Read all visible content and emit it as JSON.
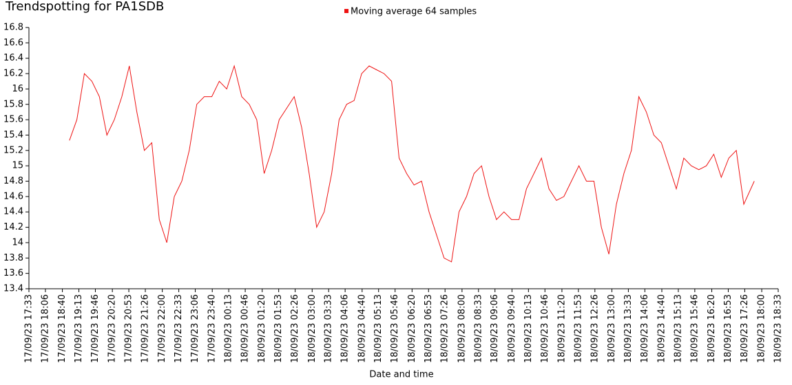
{
  "chart_data": {
    "type": "line",
    "title": "Trendspotting for PA1SDB",
    "xlabel": "Date and time",
    "series": [
      {
        "name": "Moving average 64 samples",
        "color": "#ee1111",
        "x": [
          "2023-09-17T18:54",
          "2023-09-17T19:09",
          "2023-09-17T19:24",
          "2023-09-17T19:39",
          "2023-09-17T19:54",
          "2023-09-17T20:09",
          "2023-09-17T20:24",
          "2023-09-17T20:39",
          "2023-09-17T20:54",
          "2023-09-17T21:09",
          "2023-09-17T21:24",
          "2023-09-17T21:39",
          "2023-09-17T21:54",
          "2023-09-17T22:09",
          "2023-09-17T22:24",
          "2023-09-17T22:39",
          "2023-09-17T22:54",
          "2023-09-17T23:09",
          "2023-09-17T23:24",
          "2023-09-17T23:39",
          "2023-09-17T23:54",
          "2023-09-18T00:09",
          "2023-09-18T00:24",
          "2023-09-18T00:39",
          "2023-09-18T00:54",
          "2023-09-18T01:09",
          "2023-09-18T01:24",
          "2023-09-18T01:39",
          "2023-09-18T01:54",
          "2023-09-18T02:09",
          "2023-09-18T02:24",
          "2023-09-18T02:39",
          "2023-09-18T02:54",
          "2023-09-18T03:09",
          "2023-09-18T03:24",
          "2023-09-18T03:39",
          "2023-09-18T03:54",
          "2023-09-18T04:09",
          "2023-09-18T04:24",
          "2023-09-18T04:39",
          "2023-09-18T04:54",
          "2023-09-18T05:09",
          "2023-09-18T05:24",
          "2023-09-18T05:39",
          "2023-09-18T05:54",
          "2023-09-18T06:09",
          "2023-09-18T06:24",
          "2023-09-18T06:39",
          "2023-09-18T06:54",
          "2023-09-18T07:09",
          "2023-09-18T07:24",
          "2023-09-18T07:39",
          "2023-09-18T07:54",
          "2023-09-18T08:09",
          "2023-09-18T08:24",
          "2023-09-18T08:39",
          "2023-09-18T08:54",
          "2023-09-18T09:09",
          "2023-09-18T09:24",
          "2023-09-18T09:39",
          "2023-09-18T09:54",
          "2023-09-18T10:09",
          "2023-09-18T10:24",
          "2023-09-18T10:39",
          "2023-09-18T10:54",
          "2023-09-18T11:09",
          "2023-09-18T11:24",
          "2023-09-18T11:39",
          "2023-09-18T11:54",
          "2023-09-18T12:09",
          "2023-09-18T12:24",
          "2023-09-18T12:39",
          "2023-09-18T12:54",
          "2023-09-18T13:09",
          "2023-09-18T13:24",
          "2023-09-18T13:39",
          "2023-09-18T13:54",
          "2023-09-18T14:09",
          "2023-09-18T14:24",
          "2023-09-18T14:39",
          "2023-09-18T14:54",
          "2023-09-18T15:09",
          "2023-09-18T15:24",
          "2023-09-18T15:39",
          "2023-09-18T15:54",
          "2023-09-18T16:09",
          "2023-09-18T16:24",
          "2023-09-18T16:39",
          "2023-09-18T16:54",
          "2023-09-18T17:09",
          "2023-09-18T17:24",
          "2023-09-18T17:45"
        ],
        "values": [
          15.33,
          15.6,
          16.2,
          16.1,
          15.9,
          15.4,
          15.6,
          15.9,
          16.3,
          15.7,
          15.2,
          15.3,
          14.3,
          14.0,
          14.6,
          14.8,
          15.2,
          15.8,
          15.9,
          15.9,
          16.1,
          16.0,
          16.3,
          15.9,
          15.8,
          15.6,
          14.9,
          15.2,
          15.6,
          15.75,
          15.9,
          15.5,
          14.9,
          14.2,
          14.4,
          14.9,
          15.6,
          15.8,
          15.85,
          16.2,
          16.3,
          16.25,
          16.2,
          16.1,
          15.1,
          14.9,
          14.75,
          14.8,
          14.4,
          14.1,
          13.8,
          13.75,
          14.4,
          14.6,
          14.9,
          15.0,
          14.6,
          14.3,
          14.4,
          14.3,
          14.3,
          14.7,
          14.9,
          15.1,
          14.7,
          14.55,
          14.6,
          14.8,
          15.0,
          14.8,
          14.8,
          14.2,
          13.85,
          14.5,
          14.9,
          15.2,
          15.9,
          15.7,
          15.4,
          15.3,
          15.0,
          14.7,
          15.1,
          15.0,
          14.95,
          15.0,
          15.15,
          14.85,
          15.1,
          15.2,
          14.5,
          14.8
        ]
      }
    ],
    "xlim": [
      "2023-09-17T17:33",
      "2023-09-18T18:33"
    ],
    "xticks": [
      {
        "value": "2023-09-17T17:33",
        "label": "17/09/23 17:33"
      },
      {
        "value": "2023-09-17T18:06",
        "label": "17/09/23 18:06"
      },
      {
        "value": "2023-09-17T18:40",
        "label": "17/09/23 18:40"
      },
      {
        "value": "2023-09-17T19:13",
        "label": "17/09/23 19:13"
      },
      {
        "value": "2023-09-17T19:46",
        "label": "17/09/23 19:46"
      },
      {
        "value": "2023-09-17T20:20",
        "label": "17/09/23 20:20"
      },
      {
        "value": "2023-09-17T20:53",
        "label": "17/09/23 20:53"
      },
      {
        "value": "2023-09-17T21:26",
        "label": "17/09/23 21:26"
      },
      {
        "value": "2023-09-17T22:00",
        "label": "17/09/23 22:00"
      },
      {
        "value": "2023-09-17T22:33",
        "label": "17/09/23 22:33"
      },
      {
        "value": "2023-09-17T23:06",
        "label": "17/09/23 23:06"
      },
      {
        "value": "2023-09-17T23:40",
        "label": "17/09/23 23:40"
      },
      {
        "value": "2023-09-18T00:13",
        "label": "18/09/23 00:13"
      },
      {
        "value": "2023-09-18T00:46",
        "label": "18/09/23 00:46"
      },
      {
        "value": "2023-09-18T01:20",
        "label": "18/09/23 01:20"
      },
      {
        "value": "2023-09-18T01:53",
        "label": "18/09/23 01:53"
      },
      {
        "value": "2023-09-18T02:26",
        "label": "18/09/23 02:26"
      },
      {
        "value": "2023-09-18T03:00",
        "label": "18/09/23 03:00"
      },
      {
        "value": "2023-09-18T03:33",
        "label": "18/09/23 03:33"
      },
      {
        "value": "2023-09-18T04:06",
        "label": "18/09/23 04:06"
      },
      {
        "value": "2023-09-18T04:40",
        "label": "18/09/23 04:40"
      },
      {
        "value": "2023-09-18T05:13",
        "label": "18/09/23 05:13"
      },
      {
        "value": "2023-09-18T05:46",
        "label": "18/09/23 05:46"
      },
      {
        "value": "2023-09-18T06:20",
        "label": "18/09/23 06:20"
      },
      {
        "value": "2023-09-18T06:53",
        "label": "18/09/23 06:53"
      },
      {
        "value": "2023-09-18T07:26",
        "label": "18/09/23 07:26"
      },
      {
        "value": "2023-09-18T08:00",
        "label": "18/09/23 08:00"
      },
      {
        "value": "2023-09-18T08:33",
        "label": "18/09/23 08:33"
      },
      {
        "value": "2023-09-18T09:06",
        "label": "18/09/23 09:06"
      },
      {
        "value": "2023-09-18T09:40",
        "label": "18/09/23 09:40"
      },
      {
        "value": "2023-09-18T10:13",
        "label": "18/09/23 10:13"
      },
      {
        "value": "2023-09-18T10:46",
        "label": "18/09/23 10:46"
      },
      {
        "value": "2023-09-18T11:20",
        "label": "18/09/23 11:20"
      },
      {
        "value": "2023-09-18T11:53",
        "label": "18/09/23 11:53"
      },
      {
        "value": "2023-09-18T12:26",
        "label": "18/09/23 12:26"
      },
      {
        "value": "2023-09-18T13:00",
        "label": "18/09/23 13:00"
      },
      {
        "value": "2023-09-18T13:33",
        "label": "18/09/23 13:33"
      },
      {
        "value": "2023-09-18T14:06",
        "label": "18/09/23 14:06"
      },
      {
        "value": "2023-09-18T14:40",
        "label": "18/09/23 14:40"
      },
      {
        "value": "2023-09-18T15:13",
        "label": "18/09/23 15:13"
      },
      {
        "value": "2023-09-18T15:46",
        "label": "18/09/23 15:46"
      },
      {
        "value": "2023-09-18T16:20",
        "label": "18/09/23 16:20"
      },
      {
        "value": "2023-09-18T16:53",
        "label": "18/09/23 16:53"
      },
      {
        "value": "2023-09-18T17:26",
        "label": "18/09/23 17:26"
      },
      {
        "value": "2023-09-18T18:00",
        "label": "18/09/23 18:00"
      },
      {
        "value": "2023-09-18T18:33",
        "label": "18/09/23 18:33"
      }
    ],
    "ylim": [
      13.4,
      16.8
    ],
    "yticks": [
      13.4,
      13.6,
      13.8,
      14,
      14.2,
      14.4,
      14.6,
      14.8,
      15,
      15.2,
      15.4,
      15.6,
      15.8,
      16,
      16.2,
      16.4,
      16.6,
      16.8
    ],
    "grid": false,
    "legend": "top"
  }
}
